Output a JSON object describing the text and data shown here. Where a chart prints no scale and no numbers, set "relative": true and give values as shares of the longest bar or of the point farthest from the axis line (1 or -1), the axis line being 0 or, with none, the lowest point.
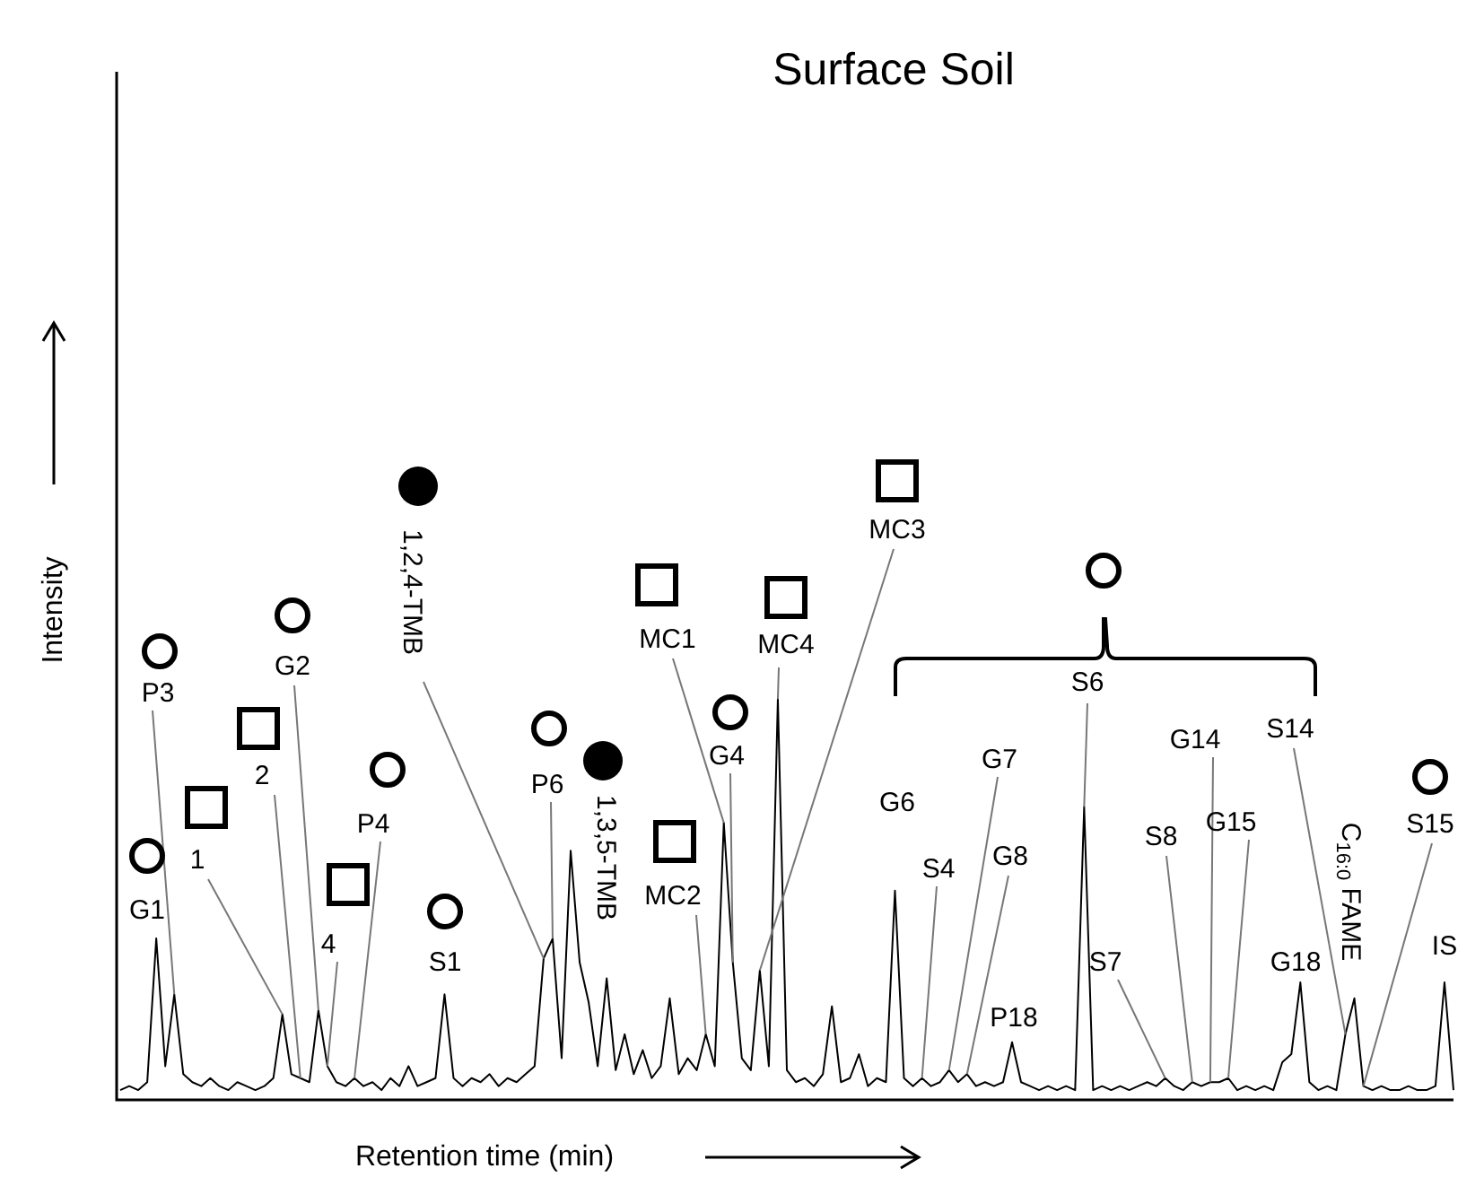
{
  "chart_data": {
    "type": "line",
    "title": "Surface Soil",
    "xlabel": "Retention time (min)",
    "ylabel": "Intensity",
    "relative": true,
    "legend": false,
    "marker": "none",
    "line_style": "solid",
    "categories": [
      null,
      null,
      null,
      null,
      null,
      null,
      null,
      null,
      null,
      null,
      null,
      null,
      null,
      null,
      null,
      null,
      null,
      null,
      null,
      null,
      null,
      null,
      null,
      null,
      null,
      null,
      null,
      null,
      null,
      null,
      null,
      null,
      null,
      null,
      null,
      null,
      null,
      null,
      null,
      null,
      null,
      null,
      null,
      null,
      null,
      null,
      null,
      null,
      null,
      null,
      null,
      null,
      null,
      null,
      null,
      null,
      null,
      null,
      null,
      null,
      null,
      null,
      null,
      null,
      null,
      null,
      null,
      null,
      null,
      null,
      null,
      null,
      null,
      null,
      null,
      null,
      null,
      null,
      null,
      null,
      null,
      null,
      null,
      null,
      null,
      null,
      null,
      null,
      null,
      null,
      null,
      null,
      null,
      null,
      null,
      null,
      null,
      null,
      null,
      null,
      null,
      null,
      null,
      null,
      null,
      null,
      null,
      null,
      null,
      null,
      null,
      null,
      null,
      null,
      null,
      null,
      null,
      null,
      null,
      null,
      null,
      null,
      null,
      null,
      null,
      null,
      null,
      null,
      null,
      null,
      null,
      null,
      null,
      null,
      null,
      null,
      null,
      null,
      null,
      null,
      null,
      null,
      null,
      null,
      null,
      null,
      null,
      null,
      null
    ],
    "series": [
      {
        "color": "#000000",
        "values": [
          0.02,
          0.03,
          0.02,
          0.04,
          0.4,
          0.08,
          0.26,
          0.06,
          0.04,
          0.03,
          0.05,
          0.03,
          0.02,
          0.04,
          0.03,
          0.02,
          0.03,
          0.05,
          0.21,
          0.06,
          0.05,
          0.04,
          0.22,
          0.08,
          0.04,
          0.03,
          0.05,
          0.03,
          0.04,
          0.02,
          0.05,
          0.03,
          0.08,
          0.03,
          0.04,
          0.05,
          0.26,
          0.05,
          0.03,
          0.05,
          0.04,
          0.06,
          0.03,
          0.05,
          0.04,
          0.06,
          0.08,
          0.35,
          0.4,
          0.1,
          0.62,
          0.34,
          0.24,
          0.08,
          0.3,
          0.07,
          0.16,
          0.06,
          0.12,
          0.05,
          0.08,
          0.25,
          0.06,
          0.1,
          0.07,
          0.16,
          0.08,
          0.69,
          0.34,
          0.1,
          0.07,
          0.32,
          0.08,
          1,
          0.07,
          0.04,
          0.05,
          0.03,
          0.06,
          0.23,
          0.04,
          0.05,
          0.11,
          0.03,
          0.05,
          0.04,
          0.52,
          0.05,
          0.03,
          0.05,
          0.03,
          0.04,
          0.07,
          0.04,
          0.06,
          0.03,
          0.04,
          0.03,
          0.04,
          0.14,
          0.04,
          0.03,
          0.02,
          0.03,
          0.02,
          0.03,
          0.02,
          0.73,
          0.02,
          0.03,
          0.02,
          0.03,
          0.02,
          0.03,
          0.04,
          0.03,
          0.05,
          0.03,
          0.02,
          0.04,
          0.03,
          0.04,
          0.04,
          0.05,
          0.02,
          0.03,
          0.02,
          0.03,
          0.02,
          0.09,
          0.11,
          0.29,
          0.04,
          0.02,
          0.03,
          0.02,
          0.16,
          0.25,
          0.03,
          0.02,
          0.03,
          0.02,
          0.02,
          0.03,
          0.02,
          0.02,
          0.03,
          0.29,
          0.02
        ]
      }
    ],
    "annotations": [
      "P3",
      "G1",
      "1",
      "2",
      "G2",
      "4",
      "P4",
      "S1",
      "1,2,4-TMB",
      "P6",
      "1,3,5-TMB",
      "MC1",
      "MC2",
      "G4",
      "MC4",
      "MC3",
      "S6",
      "G6",
      "S4",
      "G7",
      "G8",
      "P18",
      "S7",
      "S8",
      "G14",
      "G15",
      "S14",
      "G18",
      "C$_{16:0}$ FAME",
      "S15",
      "IS"
    ]
  }
}
